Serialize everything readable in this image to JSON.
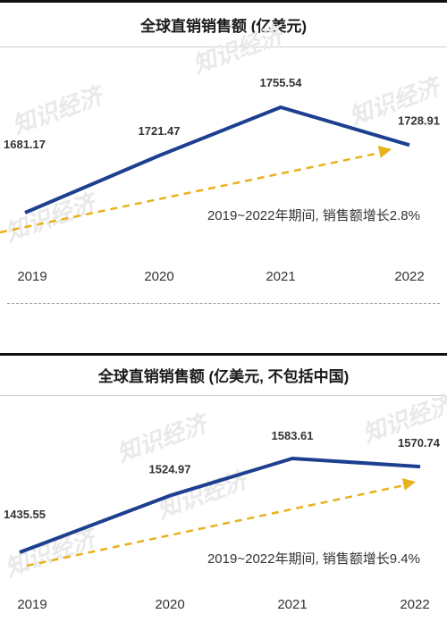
{
  "chart_data": [
    {
      "type": "line",
      "title": "全球直销销售额 (亿美元)",
      "categories": [
        "2019",
        "2020",
        "2021",
        "2022"
      ],
      "values": [
        1681.17,
        1721.47,
        1755.54,
        1728.91
      ],
      "value_labels": [
        "1681.17",
        "1721.47",
        "1755.54",
        "1728.91"
      ],
      "ylim": [
        1650,
        1770
      ],
      "annotation": "2019~2022年期间, 销售额增长2.8%",
      "colors": {
        "line": "#1d3f8f",
        "trend": "#e8b21d"
      },
      "grid": false,
      "legend": "none"
    },
    {
      "type": "line",
      "title": "全球直销销售额 (亿美元, 不包括中国)",
      "categories": [
        "2019",
        "2020",
        "2021",
        "2022"
      ],
      "values": [
        1435.55,
        1524.97,
        1583.61,
        1570.74
      ],
      "value_labels": [
        "1435.55",
        "1524.97",
        "1583.61",
        "1570.74"
      ],
      "ylim": [
        1380,
        1600
      ],
      "annotation": "2019~2022年期间, 销售额增长9.4%",
      "colors": {
        "line": "#1d3f8f",
        "trend": "#e8b21d"
      },
      "grid": false,
      "legend": "none"
    }
  ],
  "watermark": "知识经济"
}
